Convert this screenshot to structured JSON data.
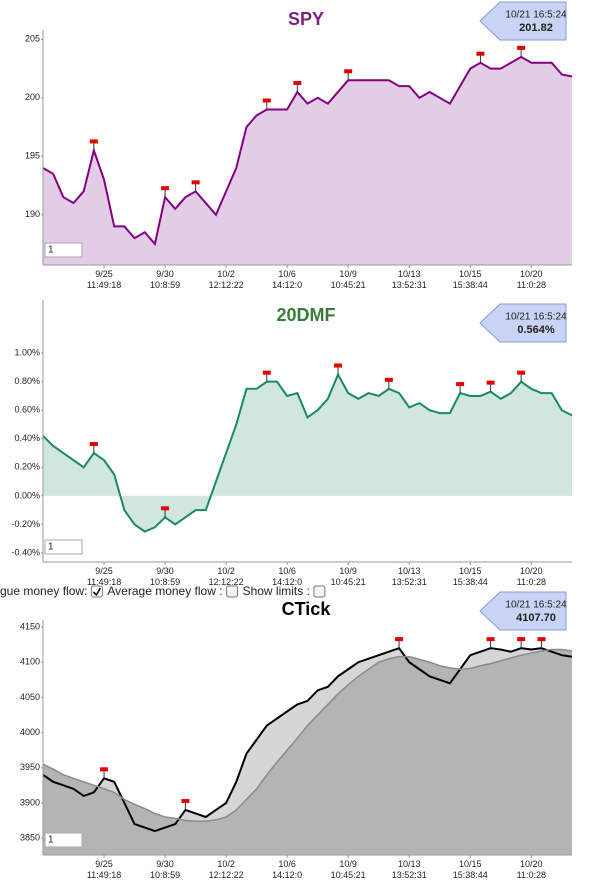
{
  "controls": [
    {
      "label": "gue money flow:",
      "checked": true
    },
    {
      "label": "Average money flow :",
      "checked": false
    },
    {
      "label": "Show limits :",
      "checked": false
    }
  ],
  "chart_data": [
    {
      "type": "line",
      "title": "SPY",
      "title_color": "#7a1f7a",
      "categories": [
        null,
        null,
        null,
        null,
        null,
        null,
        "9/25\n11:49:18",
        null,
        null,
        null,
        null,
        null,
        "9/30\n10:8:59",
        null,
        null,
        null,
        null,
        null,
        "10/2\n12:12:22",
        null,
        null,
        null,
        null,
        null,
        "10/6\n14:12:0",
        null,
        null,
        null,
        null,
        null,
        "10/9\n10:45:21",
        null,
        null,
        null,
        null,
        null,
        "10/13\n13:52:31",
        null,
        null,
        null,
        null,
        null,
        "10/15\n15:38:44",
        null,
        null,
        null,
        null,
        null,
        "10/20\n11:0:28",
        null,
        null,
        null,
        null
      ],
      "series": [
        {
          "color": "#800080",
          "fill": "#e3cde6",
          "values": [
            194,
            193.5,
            191.5,
            191,
            192,
            195.5,
            193,
            189,
            189,
            188,
            188.5,
            187.5,
            191.5,
            190.5,
            191.5,
            192,
            191,
            190,
            192,
            194,
            197.5,
            198.5,
            199,
            199,
            199,
            200.5,
            199.5,
            200,
            199.5,
            200.5,
            201.5,
            201.5,
            201.5,
            201.5,
            201.5,
            201,
            201,
            200,
            200.5,
            200,
            199.5,
            201,
            202.5,
            203,
            202.5,
            202.5,
            203,
            203.5,
            203,
            203,
            203,
            202,
            201.82
          ]
        }
      ],
      "ylim": [
        185.7,
        205.8
      ],
      "yticks": [
        190,
        195,
        200,
        205
      ],
      "callout": {
        "time": "10/21 16:5:24",
        "value": 201.82
      },
      "range_input": "1"
    },
    {
      "type": "line",
      "title": "20DMF",
      "title_color": "#3c7a3c",
      "categories": [
        null,
        null,
        null,
        null,
        null,
        null,
        "9/25\n11:49:18",
        null,
        null,
        null,
        null,
        null,
        "9/30\n10:8:59",
        null,
        null,
        null,
        null,
        null,
        "10/2\n12:12:22",
        null,
        null,
        null,
        null,
        null,
        "10/6\n14:12:0",
        null,
        null,
        null,
        null,
        null,
        "10/9\n10:45:21",
        null,
        null,
        null,
        null,
        null,
        "10/13\n13:52:31",
        null,
        null,
        null,
        null,
        null,
        "10/15\n15:38:44",
        null,
        null,
        null,
        null,
        null,
        "10/20\n11:0:28",
        null,
        null,
        null,
        null
      ],
      "series": [
        {
          "color": "#1a8a60",
          "fill": "#d0e6df",
          "values": [
            0.42,
            0.35,
            0.3,
            0.25,
            0.2,
            0.3,
            0.25,
            0.15,
            -0.1,
            -0.2,
            -0.25,
            -0.22,
            -0.15,
            -0.2,
            -0.15,
            -0.1,
            -0.1,
            0.1,
            0.3,
            0.5,
            0.75,
            0.75,
            0.8,
            0.8,
            0.7,
            0.72,
            0.55,
            0.6,
            0.68,
            0.85,
            0.72,
            0.68,
            0.72,
            0.7,
            0.75,
            0.72,
            0.62,
            0.65,
            0.6,
            0.58,
            0.58,
            0.72,
            0.7,
            0.7,
            0.73,
            0.68,
            0.72,
            0.8,
            0.75,
            0.72,
            0.72,
            0.6,
            0.564
          ]
        }
      ],
      "ylim": [
        -0.463,
        1.372
      ],
      "yticks": [
        {
          "value": -0.4,
          "label": "-0.40%"
        },
        {
          "value": -0.2,
          "label": "-0.20%"
        },
        {
          "value": 0,
          "label": "0.00%"
        },
        {
          "value": 0.2,
          "label": "0.20%"
        },
        {
          "value": 0.4,
          "label": "0.40%"
        },
        {
          "value": 0.6,
          "label": "0.60%"
        },
        {
          "value": 0.8,
          "label": "0.80%"
        },
        {
          "value": 1,
          "label": "1.00%"
        }
      ],
      "callout": {
        "time": "10/21 16:5:24",
        "value": 0.564,
        "label": "0.564%"
      },
      "range_input": "1"
    },
    {
      "type": "line",
      "title": "CTick",
      "title_color": "#000000",
      "categories": [
        null,
        null,
        null,
        null,
        null,
        null,
        "9/25\n11:49:18",
        null,
        null,
        null,
        null,
        null,
        "9/30\n10:8:59",
        null,
        null,
        null,
        null,
        null,
        "10/2\n12:12:22",
        null,
        null,
        null,
        null,
        null,
        "10/6\n14:12:0",
        null,
        null,
        null,
        null,
        null,
        "10/9\n10:45:21",
        null,
        null,
        null,
        null,
        null,
        "10/13\n13:52:31",
        null,
        null,
        null,
        null,
        null,
        "10/15\n15:38:44",
        null,
        null,
        null,
        null,
        null,
        "10/20\n11:0:28",
        null,
        null,
        null,
        null
      ],
      "series": [
        {
          "color": "#000000",
          "fill": "#d6d6d6",
          "values": [
            3940,
            3930,
            3925,
            3920,
            3910,
            3915,
            3935,
            3930,
            3900,
            3870,
            3865,
            3860,
            3865,
            3870,
            3890,
            3885,
            3880,
            3890,
            3900,
            3930,
            3970,
            3990,
            4010,
            4020,
            4030,
            4040,
            4045,
            4060,
            4065,
            4080,
            4090,
            4100,
            4105,
            4110,
            4115,
            4120,
            4100,
            4090,
            4080,
            4075,
            4070,
            4090,
            4110,
            4115,
            4120,
            4118,
            4115,
            4120,
            4118,
            4120,
            4115,
            4110,
            4107.7
          ]
        },
        {
          "color": "#8a8a8a",
          "fill": "#b4b4b4",
          "values": [
            3955,
            3948,
            3940,
            3935,
            3930,
            3925,
            3920,
            3915,
            3905,
            3898,
            3892,
            3885,
            3880,
            3878,
            3875,
            3874,
            3874,
            3876,
            3880,
            3890,
            3905,
            3920,
            3940,
            3958,
            3975,
            3992,
            4010,
            4025,
            4040,
            4055,
            4068,
            4080,
            4090,
            4100,
            4105,
            4108,
            4108,
            4104,
            4100,
            4095,
            4092,
            4090,
            4091,
            4095,
            4098,
            4102,
            4106,
            4110,
            4113,
            4116,
            4118,
            4118,
            4116
          ]
        }
      ],
      "ylim": [
        3826,
        4160
      ],
      "yticks": [
        3850,
        3900,
        3950,
        4000,
        4050,
        4100,
        4150
      ],
      "callout": {
        "time": "10/21 16:5:24",
        "value": 4107.7,
        "label": "4107.70"
      },
      "range_input": "1"
    }
  ]
}
